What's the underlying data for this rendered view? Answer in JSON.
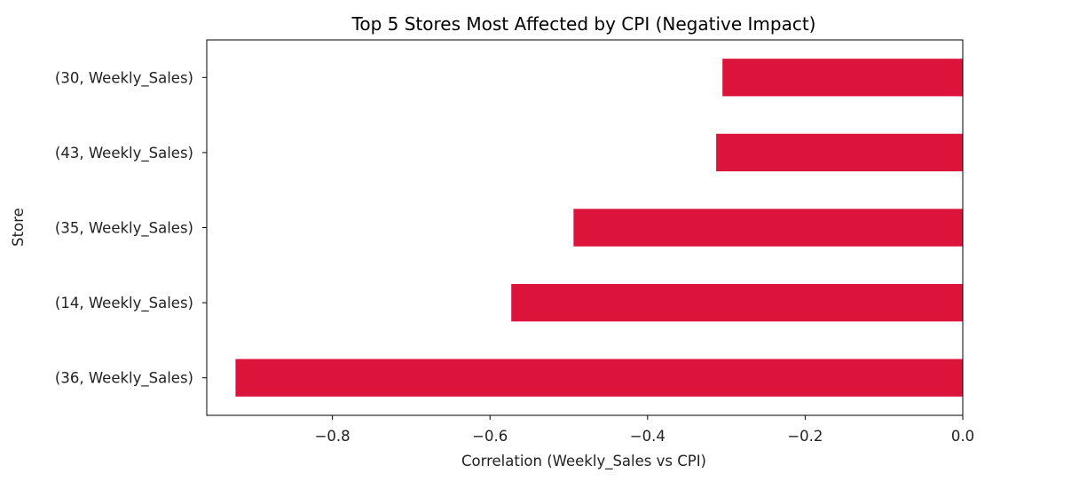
{
  "chart_data": {
    "type": "bar",
    "orientation": "horizontal",
    "title": "Top 5 Stores Most Affected by CPI (Negative Impact)",
    "xlabel": "Correlation (Weekly_Sales vs CPI)",
    "ylabel": "Store",
    "categories": [
      "(30, Weekly_Sales)",
      "(43, Weekly_Sales)",
      "(35, Weekly_Sales)",
      "(14, Weekly_Sales)",
      "(36, Weekly_Sales)"
    ],
    "values": [
      -0.305,
      -0.313,
      -0.494,
      -0.573,
      -0.923
    ],
    "xlim": [
      -0.9595,
      0.0
    ],
    "xticks": [
      -0.8,
      -0.6,
      -0.4,
      -0.2,
      0.0
    ],
    "xtick_labels": [
      "−0.8",
      "−0.6",
      "−0.4",
      "−0.2",
      "0.0"
    ],
    "bar_color": "#dc143c",
    "grid": false,
    "legend": "none"
  }
}
